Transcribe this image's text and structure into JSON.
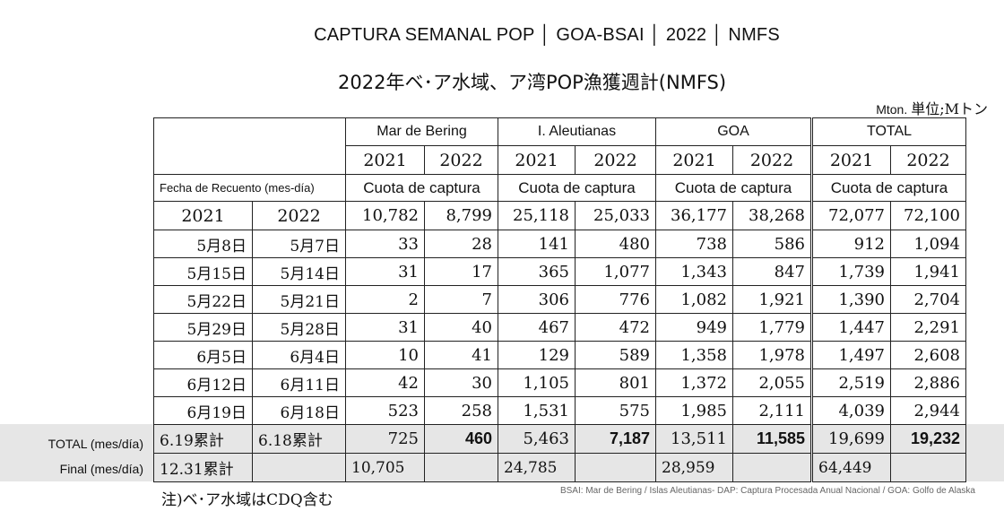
{
  "title": "CAPTURA SEMANAL POP │ GOA-BSAI │ 2022 │ NMFS",
  "title_jp": "2022年ベ･ア水域、ア湾POP漁獲週計(NMFS)",
  "unit": "Mton.",
  "unit_jp": "単位;Mトン",
  "regions": [
    "Mar de Bering",
    "I. Aleutianas",
    "GOA",
    "TOTAL"
  ],
  "years": [
    "2021",
    "2022"
  ],
  "quota_label": "Cuota de captura",
  "fecha_label": "Fecha de Recuento (mes-día)",
  "quota_row": {
    "date_years": [
      "2021",
      "2022"
    ],
    "values": [
      "10,782",
      "8,799",
      "25,118",
      "25,033",
      "36,177",
      "38,268",
      "72,077",
      "72,100"
    ]
  },
  "rows": [
    {
      "d2021": "5月8日",
      "d2022": "5月7日",
      "values": [
        "33",
        "28",
        "141",
        "480",
        "738",
        "586",
        "912",
        "1,094"
      ]
    },
    {
      "d2021": "5月15日",
      "d2022": "5月14日",
      "values": [
        "31",
        "17",
        "365",
        "1,077",
        "1,343",
        "847",
        "1,739",
        "1,941"
      ]
    },
    {
      "d2021": "5月22日",
      "d2022": "5月21日",
      "values": [
        "2",
        "7",
        "306",
        "776",
        "1,082",
        "1,921",
        "1,390",
        "2,704"
      ]
    },
    {
      "d2021": "5月29日",
      "d2022": "5月28日",
      "values": [
        "31",
        "40",
        "467",
        "472",
        "949",
        "1,779",
        "1,447",
        "2,291"
      ]
    },
    {
      "d2021": "6月5日",
      "d2022": "6月4日",
      "values": [
        "10",
        "41",
        "129",
        "589",
        "1,358",
        "1,978",
        "1,497",
        "2,608"
      ]
    },
    {
      "d2021": "6月12日",
      "d2022": "6月11日",
      "values": [
        "42",
        "30",
        "1,105",
        "801",
        "1,372",
        "2,055",
        "2,519",
        "2,886"
      ]
    },
    {
      "d2021": "6月19日",
      "d2022": "6月18日",
      "values": [
        "523",
        "258",
        "1,531",
        "575",
        "1,985",
        "2,111",
        "4,039",
        "2,944"
      ]
    }
  ],
  "total_row": {
    "side_label": "TOTAL (mes/día)",
    "d2021": "6.19累計",
    "d2022": "6.18累計",
    "values": [
      "725",
      "460",
      "5,463",
      "7,187",
      "13,511",
      "11,585",
      "19,699",
      "19,232"
    ]
  },
  "final_row": {
    "side_label": "Final (mes/día)",
    "d2021": "12.31累計",
    "values": [
      "10,705",
      "24,785",
      "28,959",
      "64,449"
    ]
  },
  "note": "注)ベ･ア水域はCDQ含む",
  "footnote": "BSAI: Mar de Bering / Islas Aleutianas- DAP: Captura Procesada Anual Nacional / GOA: Golfo de Alaska"
}
